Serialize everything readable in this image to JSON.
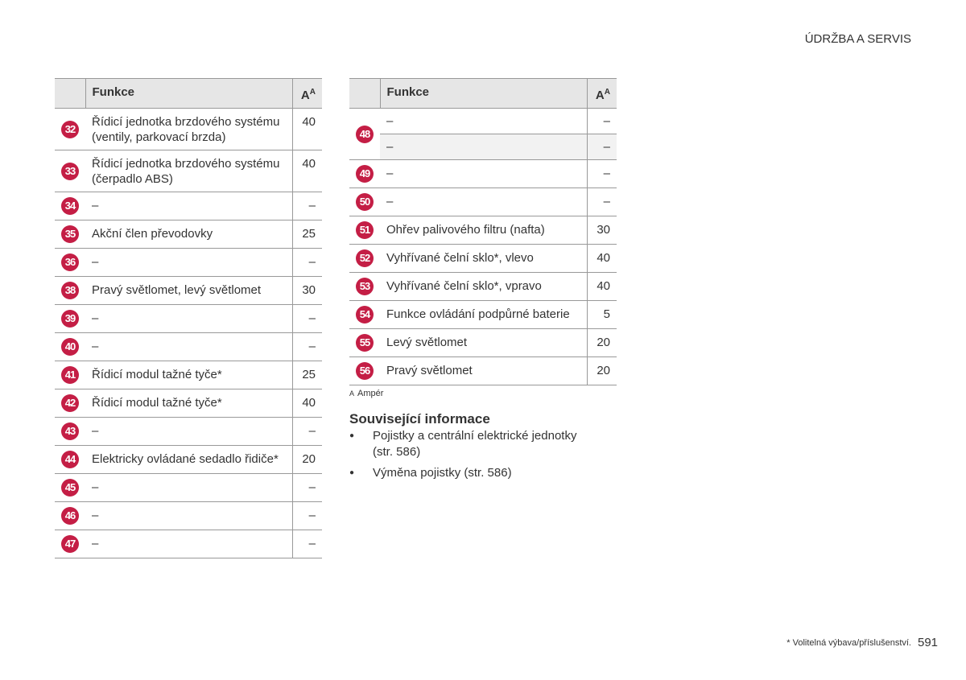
{
  "header": {
    "section": "ÚDRŽBA A SERVIS"
  },
  "tables": [
    {
      "head": {
        "function": "Funkce",
        "amps": "A",
        "amps_note": "A"
      },
      "rows": [
        {
          "number": "32",
          "entries": [
            {
              "function": "Řídicí jednotka brzdového systému (ventily, parkovací brzda)",
              "amps": "40"
            }
          ]
        },
        {
          "number": "33",
          "entries": [
            {
              "function": "Řídicí jednotka brzdového systému (čerpadlo ABS)",
              "amps": "40"
            }
          ]
        },
        {
          "number": "34",
          "entries": [
            {
              "function": "–",
              "amps": "–"
            }
          ]
        },
        {
          "number": "35",
          "entries": [
            {
              "function": "Akční člen převodovky",
              "amps": "25"
            }
          ]
        },
        {
          "number": "36",
          "entries": [
            {
              "function": "–",
              "amps": "–"
            }
          ]
        },
        {
          "number": "38",
          "entries": [
            {
              "function": "Pravý světlomet, levý světlomet",
              "amps": "30"
            }
          ]
        },
        {
          "number": "39",
          "entries": [
            {
              "function": "–",
              "amps": "–"
            }
          ]
        },
        {
          "number": "40",
          "entries": [
            {
              "function": "–",
              "amps": "–"
            }
          ]
        },
        {
          "number": "41",
          "entries": [
            {
              "function": "Řídicí modul tažné tyče*",
              "amps": "25"
            }
          ]
        },
        {
          "number": "42",
          "entries": [
            {
              "function": "Řídicí modul tažné tyče*",
              "amps": "40"
            }
          ]
        },
        {
          "number": "43",
          "entries": [
            {
              "function": "–",
              "amps": "–"
            }
          ]
        },
        {
          "number": "44",
          "entries": [
            {
              "function": "Elektricky ovládané sedadlo řidiče*",
              "amps": "20"
            }
          ]
        },
        {
          "number": "45",
          "entries": [
            {
              "function": "–",
              "amps": "–"
            }
          ]
        },
        {
          "number": "46",
          "entries": [
            {
              "function": "–",
              "amps": "–"
            }
          ]
        },
        {
          "number": "47",
          "entries": [
            {
              "function": "–",
              "amps": "–"
            }
          ]
        }
      ]
    },
    {
      "head": {
        "function": "Funkce",
        "amps": "A",
        "amps_note": "A"
      },
      "rows": [
        {
          "number": "48",
          "entries": [
            {
              "function": "–",
              "amps": "–"
            },
            {
              "function": "–",
              "amps": "–"
            }
          ]
        },
        {
          "number": "49",
          "entries": [
            {
              "function": "–",
              "amps": "–"
            }
          ]
        },
        {
          "number": "50",
          "entries": [
            {
              "function": "–",
              "amps": "–"
            }
          ]
        },
        {
          "number": "51",
          "entries": [
            {
              "function": "Ohřev palivového filtru (nafta)",
              "amps": "30"
            }
          ]
        },
        {
          "number": "52",
          "entries": [
            {
              "function": "Vyhřívané čelní sklo*, vlevo",
              "amps": "40"
            }
          ]
        },
        {
          "number": "53",
          "entries": [
            {
              "function": "Vyhřívané čelní sklo*, vpravo",
              "amps": "40"
            }
          ]
        },
        {
          "number": "54",
          "entries": [
            {
              "function": "Funkce ovládání podpůrné baterie",
              "amps": "5"
            }
          ]
        },
        {
          "number": "55",
          "entries": [
            {
              "function": "Levý světlomet",
              "amps": "20"
            }
          ]
        },
        {
          "number": "56",
          "entries": [
            {
              "function": "Pravý světlomet",
              "amps": "20"
            }
          ]
        }
      ]
    }
  ],
  "footnote": {
    "mark": "A",
    "text": "Ampér"
  },
  "related": {
    "title": "Související informace",
    "items": [
      "Pojistky a centrální elektrické jednotky (str. 586)",
      "Výměna pojistky (str. 586)"
    ]
  },
  "footer": {
    "note": "* Volitelná výbava/příslušenství.",
    "page": "591"
  }
}
